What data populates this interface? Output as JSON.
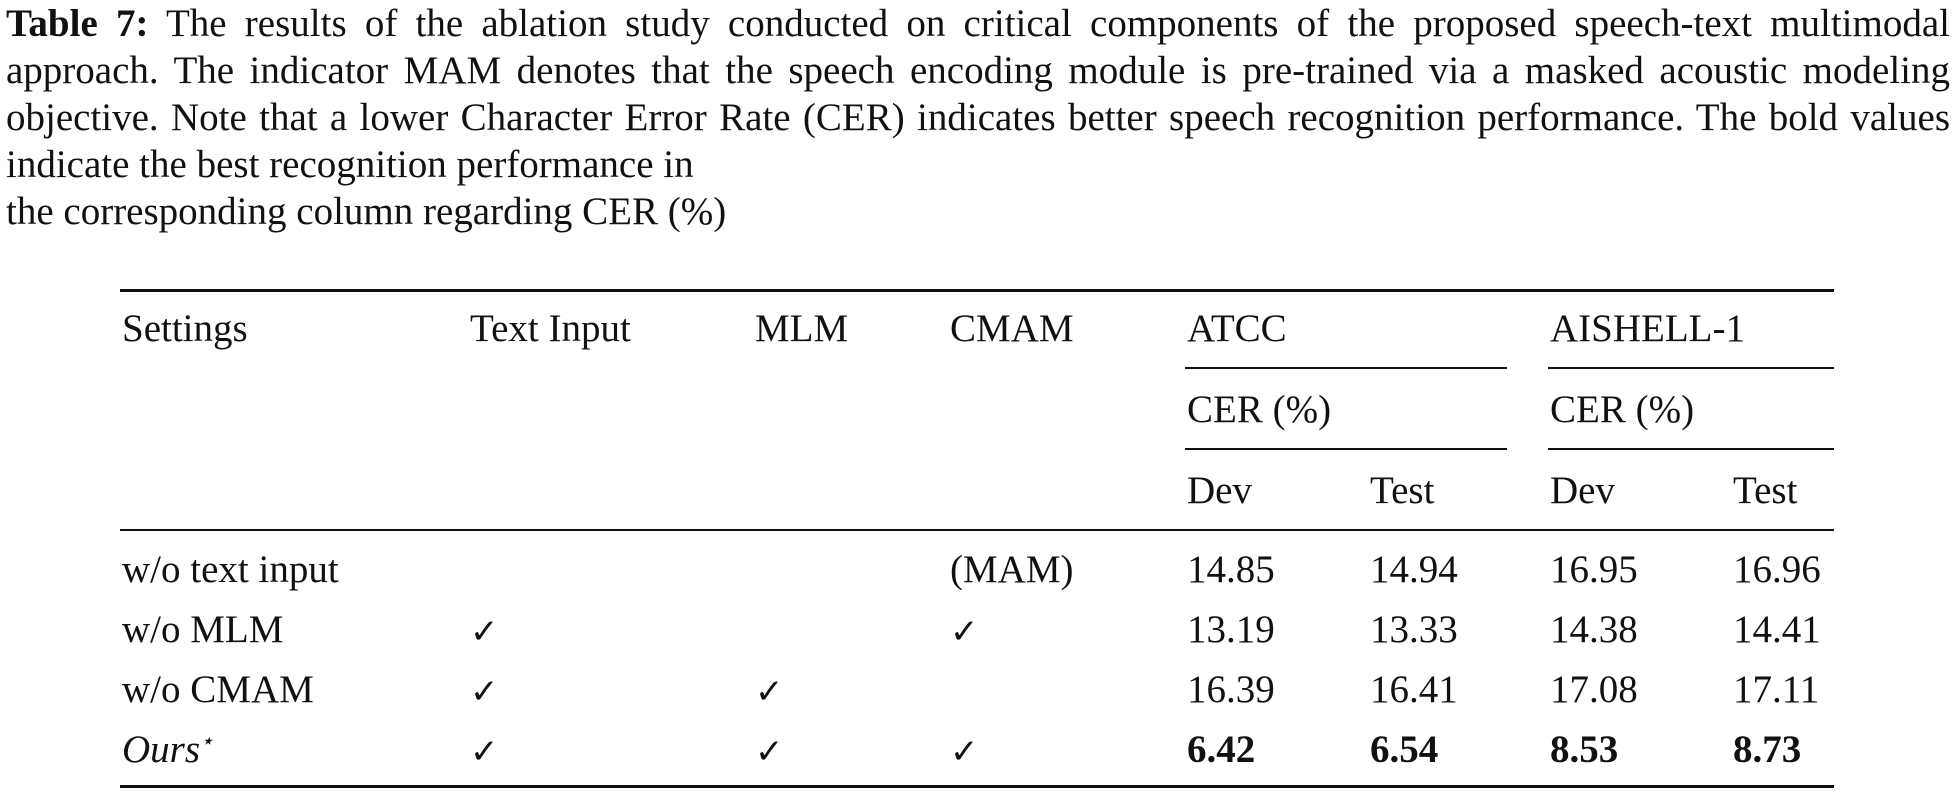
{
  "caption": {
    "label": "Table 7:",
    "text": " The results of the ablation study conducted on critical components of the proposed speech-text multimodal approach. The indicator MAM denotes that the speech encoding module is pre-trained via a masked acoustic modeling objective. Note that a lower Character Error Rate (CER) indicates better speech recognition performance. The bold values indicate the best recognition performance in",
    "text_last": "the corresponding column regarding CER (%)"
  },
  "table": {
    "headers": {
      "settings": "Settings",
      "text_input": "Text Input",
      "mlm": "MLM",
      "cmam": "CMAM",
      "atcc": "ATCC",
      "aishell": "AISHELL-1",
      "atcc_metric": "CER (%)",
      "aishell_metric": "CER (%)",
      "atcc_dev": "Dev",
      "atcc_test": "Test",
      "aishell_dev": "Dev",
      "aishell_test": "Test"
    },
    "rows": [
      {
        "setting": "w/o text input",
        "text_input": "",
        "mlm": "",
        "cmam": "(MAM)",
        "atcc_dev": "14.85",
        "atcc_test": "14.94",
        "aishell_dev": "16.95",
        "aishell_test": "16.96"
      },
      {
        "setting": "w/o MLM",
        "text_input": "✓",
        "mlm": "",
        "cmam": "✓",
        "atcc_dev": "13.19",
        "atcc_test": "13.33",
        "aishell_dev": "14.38",
        "aishell_test": "14.41"
      },
      {
        "setting": "w/o CMAM",
        "text_input": "✓",
        "mlm": "✓",
        "cmam": "",
        "atcc_dev": "16.39",
        "atcc_test": "16.41",
        "aishell_dev": "17.08",
        "aishell_test": "17.11"
      },
      {
        "setting": "Ours",
        "setting_mark": "⋆",
        "text_input": "✓",
        "mlm": "✓",
        "cmam": "✓",
        "atcc_dev": "6.42",
        "atcc_test": "6.54",
        "aishell_dev": "8.53",
        "aishell_test": "8.73"
      }
    ]
  }
}
